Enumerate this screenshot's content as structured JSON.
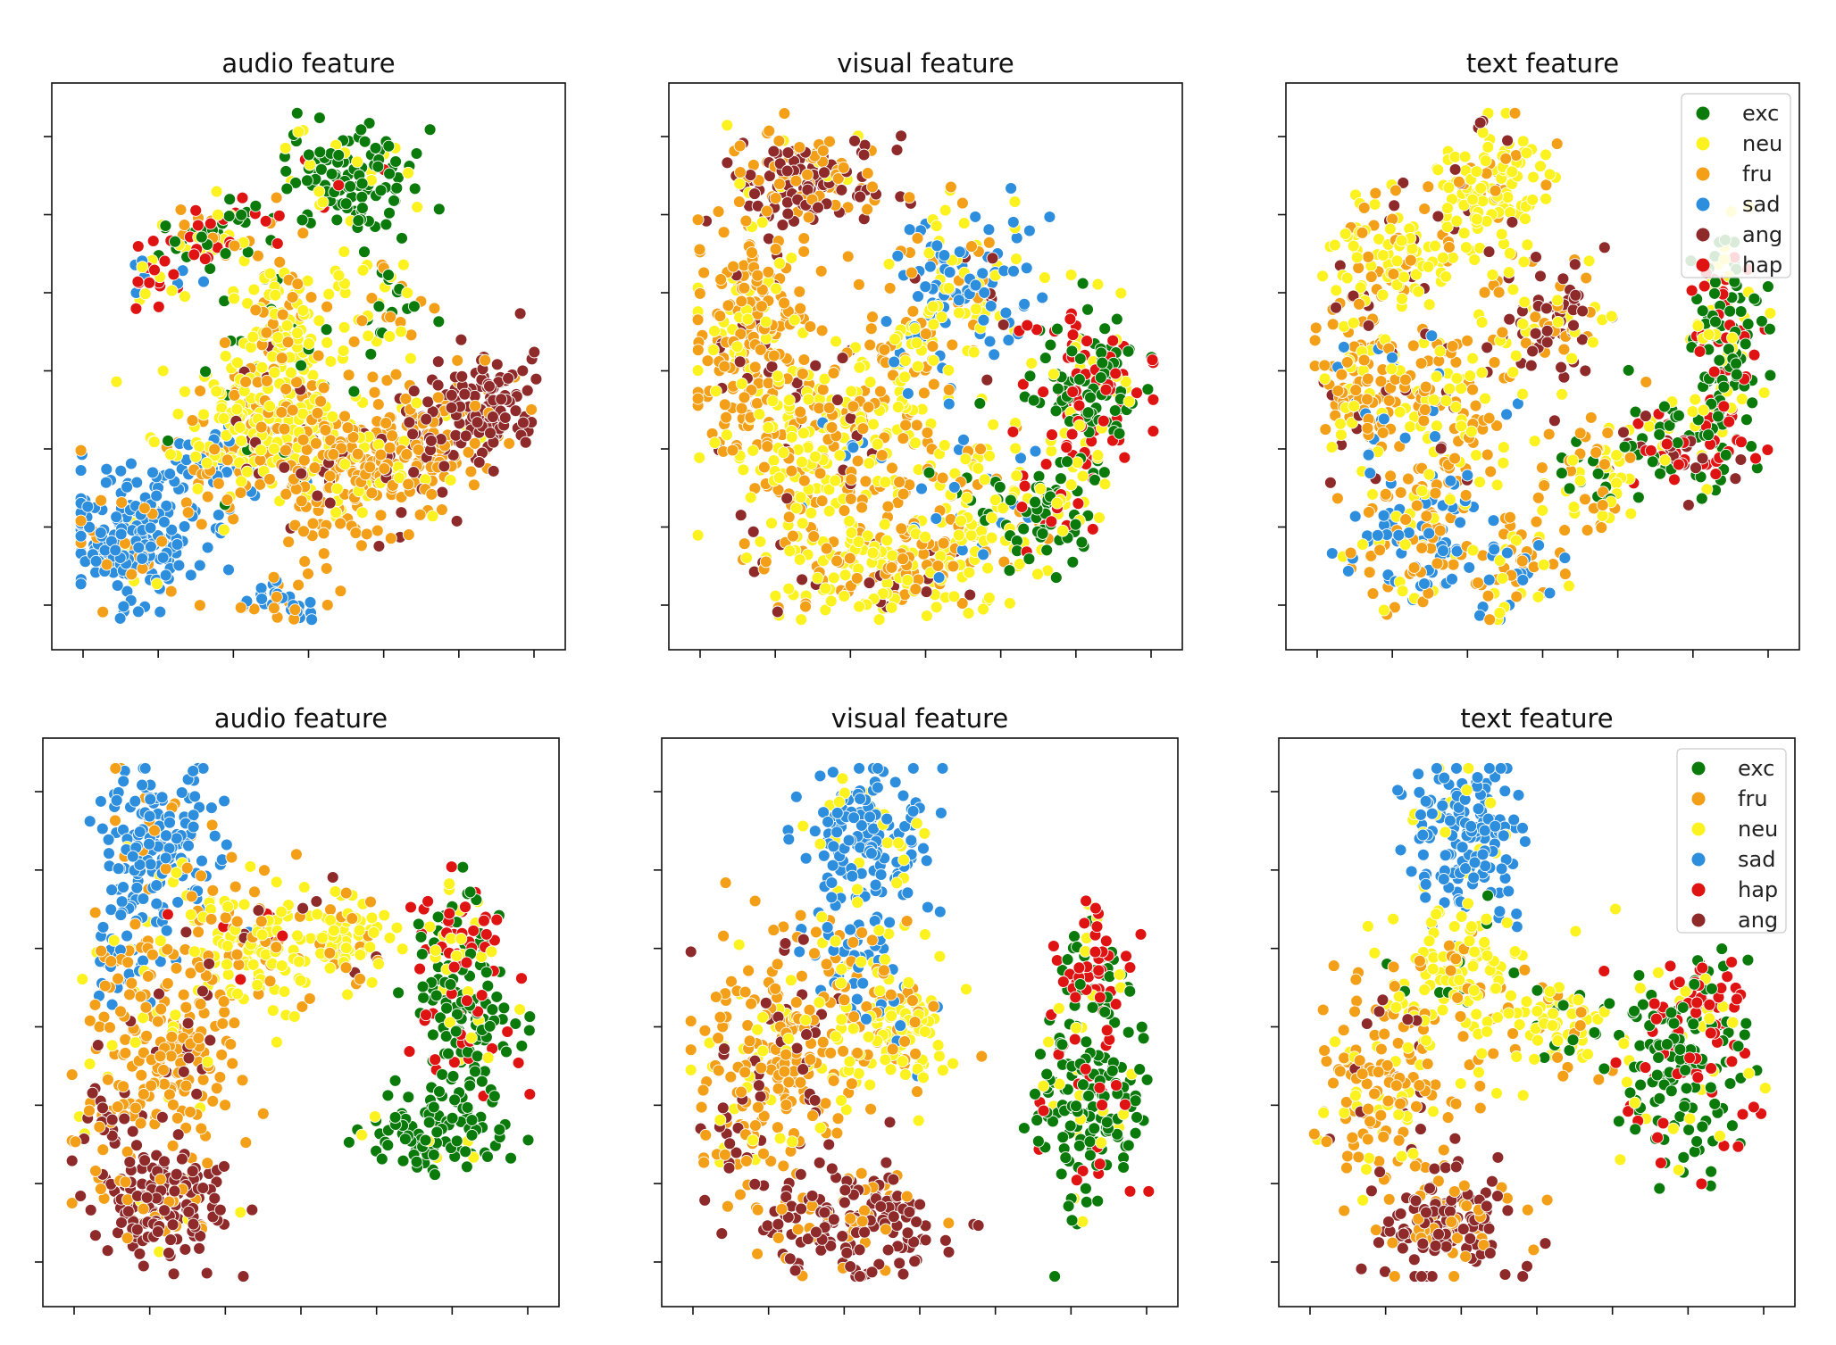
{
  "chart_data": [
    {
      "type": "scatter",
      "title": "audio feature",
      "legend": null,
      "clusters": [
        {
          "x": 0.13,
          "y": 0.18,
          "sx": 0.07,
          "sy": 0.06,
          "n": 230,
          "mix": {
            "sad": 0.85,
            "fru": 0.1,
            "neu": 0.05
          }
        },
        {
          "x": 0.3,
          "y": 0.3,
          "sx": 0.06,
          "sy": 0.05,
          "n": 70,
          "mix": {
            "sad": 0.5,
            "fru": 0.3,
            "neu": 0.2
          }
        },
        {
          "x": 0.38,
          "y": 0.4,
          "sx": 0.1,
          "sy": 0.07,
          "n": 220,
          "mix": {
            "neu": 0.7,
            "fru": 0.2,
            "exc": 0.05,
            "ang": 0.05
          }
        },
        {
          "x": 0.45,
          "y": 0.57,
          "sx": 0.07,
          "sy": 0.08,
          "n": 130,
          "mix": {
            "neu": 0.7,
            "fru": 0.25,
            "exc": 0.05
          }
        },
        {
          "x": 0.58,
          "y": 0.3,
          "sx": 0.08,
          "sy": 0.07,
          "n": 200,
          "mix": {
            "fru": 0.75,
            "neu": 0.15,
            "ang": 0.1
          }
        },
        {
          "x": 0.75,
          "y": 0.35,
          "sx": 0.06,
          "sy": 0.06,
          "n": 120,
          "mix": {
            "fru": 0.6,
            "ang": 0.3,
            "neu": 0.1
          }
        },
        {
          "x": 0.88,
          "y": 0.43,
          "sx": 0.05,
          "sy": 0.05,
          "n": 130,
          "mix": {
            "ang": 0.92,
            "fru": 0.08
          }
        },
        {
          "x": 0.58,
          "y": 0.85,
          "sx": 0.07,
          "sy": 0.05,
          "n": 130,
          "mix": {
            "exc": 0.85,
            "neu": 0.1,
            "hap": 0.05
          }
        },
        {
          "x": 0.3,
          "y": 0.75,
          "sx": 0.06,
          "sy": 0.04,
          "n": 80,
          "mix": {
            "exc": 0.35,
            "neu": 0.3,
            "hap": 0.2,
            "fru": 0.15
          }
        },
        {
          "x": 0.2,
          "y": 0.67,
          "sx": 0.04,
          "sy": 0.03,
          "n": 30,
          "mix": {
            "hap": 0.4,
            "neu": 0.3,
            "sad": 0.3
          }
        },
        {
          "x": 0.45,
          "y": 0.05,
          "sx": 0.05,
          "sy": 0.02,
          "n": 40,
          "mix": {
            "sad": 0.6,
            "fru": 0.4
          }
        },
        {
          "x": 0.67,
          "y": 0.62,
          "sx": 0.04,
          "sy": 0.05,
          "n": 40,
          "mix": {
            "exc": 0.4,
            "neu": 0.3,
            "fru": 0.3
          }
        }
      ]
    },
    {
      "type": "scatter",
      "title": "visual feature",
      "legend": null,
      "clusters": [
        {
          "x": 0.25,
          "y": 0.85,
          "sx": 0.08,
          "sy": 0.05,
          "n": 160,
          "mix": {
            "ang": 0.55,
            "fru": 0.35,
            "neu": 0.1
          }
        },
        {
          "x": 0.13,
          "y": 0.55,
          "sx": 0.06,
          "sy": 0.13,
          "n": 220,
          "mix": {
            "fru": 0.7,
            "neu": 0.2,
            "ang": 0.1
          }
        },
        {
          "x": 0.3,
          "y": 0.35,
          "sx": 0.1,
          "sy": 0.1,
          "n": 260,
          "mix": {
            "neu": 0.5,
            "fru": 0.4,
            "ang": 0.05,
            "sad": 0.05
          }
        },
        {
          "x": 0.4,
          "y": 0.12,
          "sx": 0.12,
          "sy": 0.05,
          "n": 180,
          "mix": {
            "neu": 0.55,
            "fru": 0.35,
            "ang": 0.1
          }
        },
        {
          "x": 0.58,
          "y": 0.65,
          "sx": 0.08,
          "sy": 0.07,
          "n": 160,
          "mix": {
            "sad": 0.6,
            "neu": 0.2,
            "fru": 0.15,
            "ang": 0.05
          }
        },
        {
          "x": 0.6,
          "y": 0.25,
          "sx": 0.07,
          "sy": 0.08,
          "n": 120,
          "mix": {
            "neu": 0.5,
            "fru": 0.25,
            "exc": 0.1,
            "sad": 0.15
          }
        },
        {
          "x": 0.85,
          "y": 0.45,
          "sx": 0.06,
          "sy": 0.08,
          "n": 180,
          "mix": {
            "exc": 0.5,
            "hap": 0.35,
            "neu": 0.15
          }
        },
        {
          "x": 0.75,
          "y": 0.22,
          "sx": 0.06,
          "sy": 0.05,
          "n": 80,
          "mix": {
            "exc": 0.55,
            "neu": 0.3,
            "hap": 0.15
          }
        },
        {
          "x": 0.45,
          "y": 0.5,
          "sx": 0.05,
          "sy": 0.06,
          "n": 60,
          "mix": {
            "fru": 0.5,
            "neu": 0.4,
            "sad": 0.1
          }
        }
      ]
    },
    {
      "type": "scatter",
      "title": "text feature",
      "legend": {
        "position": "upper right",
        "entries": [
          {
            "label": "exc",
            "color": "#0a7a0a"
          },
          {
            "label": "neu",
            "color": "#fcf21f"
          },
          {
            "label": "fru",
            "color": "#f39f18"
          },
          {
            "label": "sad",
            "color": "#2e8ede"
          },
          {
            "label": "ang",
            "color": "#8f2a2a"
          },
          {
            "label": "hap",
            "color": "#e01313"
          }
        ]
      },
      "clusters": [
        {
          "x": 0.4,
          "y": 0.85,
          "sx": 0.06,
          "sy": 0.06,
          "n": 120,
          "mix": {
            "neu": 0.75,
            "fru": 0.15,
            "ang": 0.1
          }
        },
        {
          "x": 0.2,
          "y": 0.72,
          "sx": 0.07,
          "sy": 0.07,
          "n": 120,
          "mix": {
            "neu": 0.6,
            "fru": 0.3,
            "ang": 0.1
          }
        },
        {
          "x": 0.12,
          "y": 0.45,
          "sx": 0.05,
          "sy": 0.09,
          "n": 130,
          "mix": {
            "fru": 0.5,
            "neu": 0.3,
            "sad": 0.15,
            "ang": 0.05
          }
        },
        {
          "x": 0.22,
          "y": 0.15,
          "sx": 0.07,
          "sy": 0.06,
          "n": 120,
          "mix": {
            "sad": 0.55,
            "fru": 0.3,
            "neu": 0.15
          }
        },
        {
          "x": 0.3,
          "y": 0.4,
          "sx": 0.07,
          "sy": 0.1,
          "n": 150,
          "mix": {
            "fru": 0.45,
            "neu": 0.35,
            "sad": 0.1,
            "ang": 0.1
          }
        },
        {
          "x": 0.52,
          "y": 0.6,
          "sx": 0.07,
          "sy": 0.06,
          "n": 100,
          "mix": {
            "ang": 0.45,
            "neu": 0.35,
            "fru": 0.2
          }
        },
        {
          "x": 0.88,
          "y": 0.55,
          "sx": 0.04,
          "sy": 0.1,
          "n": 160,
          "mix": {
            "exc": 0.5,
            "hap": 0.3,
            "neu": 0.2
          }
        },
        {
          "x": 0.8,
          "y": 0.35,
          "sx": 0.06,
          "sy": 0.04,
          "n": 100,
          "mix": {
            "hap": 0.35,
            "exc": 0.35,
            "ang": 0.2,
            "neu": 0.1
          }
        },
        {
          "x": 0.6,
          "y": 0.28,
          "sx": 0.05,
          "sy": 0.06,
          "n": 70,
          "mix": {
            "neu": 0.4,
            "exc": 0.3,
            "fru": 0.3
          }
        },
        {
          "x": 0.45,
          "y": 0.12,
          "sx": 0.05,
          "sy": 0.05,
          "n": 60,
          "mix": {
            "fru": 0.5,
            "sad": 0.3,
            "neu": 0.2
          }
        }
      ]
    },
    {
      "type": "scatter",
      "title": "audio feature",
      "legend": null,
      "clusters": [
        {
          "x": 0.2,
          "y": 0.83,
          "sx": 0.06,
          "sy": 0.07,
          "n": 180,
          "mix": {
            "sad": 0.85,
            "fru": 0.1,
            "neu": 0.05
          }
        },
        {
          "x": 0.12,
          "y": 0.63,
          "sx": 0.04,
          "sy": 0.05,
          "n": 50,
          "mix": {
            "sad": 0.6,
            "fru": 0.3,
            "neu": 0.1
          }
        },
        {
          "x": 0.4,
          "y": 0.65,
          "sx": 0.08,
          "sy": 0.06,
          "n": 150,
          "mix": {
            "neu": 0.6,
            "fru": 0.3,
            "ang": 0.05,
            "hap": 0.05
          }
        },
        {
          "x": 0.6,
          "y": 0.65,
          "sx": 0.05,
          "sy": 0.05,
          "n": 80,
          "mix": {
            "neu": 0.7,
            "fru": 0.2,
            "ang": 0.1
          }
        },
        {
          "x": 0.22,
          "y": 0.45,
          "sx": 0.07,
          "sy": 0.09,
          "n": 180,
          "mix": {
            "fru": 0.75,
            "neu": 0.15,
            "ang": 0.1
          }
        },
        {
          "x": 0.2,
          "y": 0.15,
          "sx": 0.07,
          "sy": 0.05,
          "n": 170,
          "mix": {
            "ang": 0.8,
            "fru": 0.15,
            "neu": 0.05
          }
        },
        {
          "x": 0.1,
          "y": 0.3,
          "sx": 0.04,
          "sy": 0.06,
          "n": 50,
          "mix": {
            "ang": 0.4,
            "fru": 0.5,
            "neu": 0.1
          }
        },
        {
          "x": 0.85,
          "y": 0.48,
          "sx": 0.06,
          "sy": 0.1,
          "n": 160,
          "mix": {
            "exc": 0.7,
            "hap": 0.2,
            "neu": 0.1
          }
        },
        {
          "x": 0.78,
          "y": 0.3,
          "sx": 0.07,
          "sy": 0.04,
          "n": 90,
          "mix": {
            "exc": 0.9,
            "neu": 0.1
          }
        },
        {
          "x": 0.82,
          "y": 0.68,
          "sx": 0.04,
          "sy": 0.06,
          "n": 60,
          "mix": {
            "hap": 0.5,
            "neu": 0.3,
            "exc": 0.2
          }
        }
      ]
    },
    {
      "type": "scatter",
      "title": "visual feature",
      "legend": null,
      "clusters": [
        {
          "x": 0.4,
          "y": 0.85,
          "sx": 0.06,
          "sy": 0.07,
          "n": 170,
          "mix": {
            "sad": 0.9,
            "neu": 0.1
          }
        },
        {
          "x": 0.35,
          "y": 0.65,
          "sx": 0.05,
          "sy": 0.05,
          "n": 50,
          "mix": {
            "sad": 0.6,
            "neu": 0.3,
            "fru": 0.1
          }
        },
        {
          "x": 0.2,
          "y": 0.45,
          "sx": 0.08,
          "sy": 0.1,
          "n": 200,
          "mix": {
            "fru": 0.7,
            "ang": 0.15,
            "neu": 0.15
          }
        },
        {
          "x": 0.45,
          "y": 0.5,
          "sx": 0.07,
          "sy": 0.07,
          "n": 150,
          "mix": {
            "neu": 0.6,
            "fru": 0.35,
            "sad": 0.05
          }
        },
        {
          "x": 0.35,
          "y": 0.12,
          "sx": 0.1,
          "sy": 0.05,
          "n": 180,
          "mix": {
            "ang": 0.8,
            "fru": 0.2
          }
        },
        {
          "x": 0.12,
          "y": 0.3,
          "sx": 0.04,
          "sy": 0.06,
          "n": 50,
          "mix": {
            "fru": 0.6,
            "ang": 0.3,
            "neu": 0.1
          }
        },
        {
          "x": 0.85,
          "y": 0.35,
          "sx": 0.06,
          "sy": 0.1,
          "n": 180,
          "mix": {
            "exc": 0.8,
            "hap": 0.1,
            "neu": 0.1
          }
        },
        {
          "x": 0.87,
          "y": 0.6,
          "sx": 0.04,
          "sy": 0.06,
          "n": 70,
          "mix": {
            "hap": 0.5,
            "exc": 0.3,
            "neu": 0.2
          }
        }
      ]
    },
    {
      "type": "scatter",
      "title": "text feature",
      "legend": {
        "position": "upper right",
        "entries": [
          {
            "label": "exc",
            "color": "#0a7a0a"
          },
          {
            "label": "fru",
            "color": "#f39f18"
          },
          {
            "label": "neu",
            "color": "#fcf21f"
          },
          {
            "label": "sad",
            "color": "#2e8ede"
          },
          {
            "label": "hap",
            "color": "#e01313"
          },
          {
            "label": "ang",
            "color": "#8f2a2a"
          }
        ]
      },
      "clusters": [
        {
          "x": 0.35,
          "y": 0.85,
          "sx": 0.06,
          "sy": 0.07,
          "n": 170,
          "mix": {
            "sad": 0.9,
            "neu": 0.1
          }
        },
        {
          "x": 0.35,
          "y": 0.6,
          "sx": 0.07,
          "sy": 0.06,
          "n": 120,
          "mix": {
            "neu": 0.7,
            "fru": 0.2,
            "exc": 0.1
          }
        },
        {
          "x": 0.2,
          "y": 0.38,
          "sx": 0.07,
          "sy": 0.1,
          "n": 180,
          "mix": {
            "fru": 0.65,
            "neu": 0.25,
            "ang": 0.1
          }
        },
        {
          "x": 0.3,
          "y": 0.12,
          "sx": 0.08,
          "sy": 0.05,
          "n": 150,
          "mix": {
            "ang": 0.8,
            "fru": 0.2
          }
        },
        {
          "x": 0.55,
          "y": 0.5,
          "sx": 0.06,
          "sy": 0.05,
          "n": 80,
          "mix": {
            "neu": 0.7,
            "fru": 0.2,
            "exc": 0.1
          }
        },
        {
          "x": 0.8,
          "y": 0.4,
          "sx": 0.07,
          "sy": 0.1,
          "n": 180,
          "mix": {
            "exc": 0.6,
            "hap": 0.3,
            "neu": 0.1
          }
        },
        {
          "x": 0.85,
          "y": 0.55,
          "sx": 0.04,
          "sy": 0.05,
          "n": 50,
          "mix": {
            "hap": 0.5,
            "exc": 0.3,
            "neu": 0.2
          }
        }
      ]
    }
  ],
  "colors": {
    "exc": "#0a7a0a",
    "neu": "#fcf21f",
    "fru": "#f39f18",
    "sad": "#2e8ede",
    "ang": "#8f2a2a",
    "hap": "#e01313"
  }
}
